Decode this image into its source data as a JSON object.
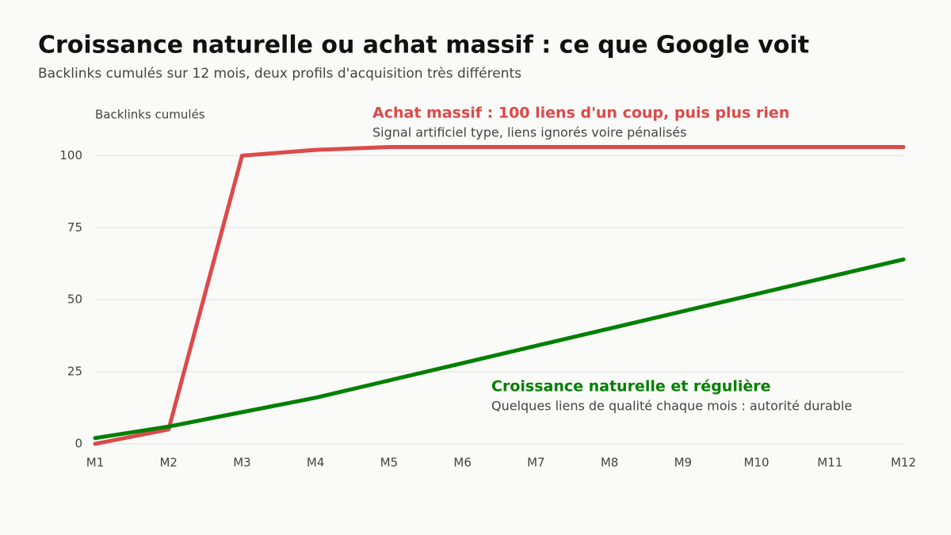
{
  "chart_data": {
    "type": "line",
    "title": "Croissance naturelle ou achat massif : ce que Google voit",
    "subtitle": "Backlinks cumulés sur 12 mois, deux profils d'acquisition très différents",
    "y_label": "Backlinks cumulés",
    "categories": [
      "M1",
      "M2",
      "M3",
      "M4",
      "M5",
      "M6",
      "M7",
      "M8",
      "M9",
      "M10",
      "M11",
      "M12"
    ],
    "series": [
      {
        "name": "Achat massif : 100 liens d'un coup, puis plus rien",
        "description": "Signal artificiel type, liens ignorés voire pénalisés",
        "color": "#dc4a4a",
        "values": [
          0,
          5,
          100,
          102,
          103,
          103,
          103,
          103,
          103,
          103,
          103,
          103
        ]
      },
      {
        "name": "Croissance naturelle et régulière",
        "description": "Quelques liens de qualité chaque mois : autorité durable",
        "color": "#008000",
        "values": [
          2,
          6,
          11,
          16,
          22,
          28,
          34,
          40,
          46,
          52,
          58,
          64
        ]
      }
    ],
    "ylim": [
      0,
      110
    ],
    "yticks": [
      0,
      25,
      50,
      75,
      100
    ],
    "grid": true
  }
}
